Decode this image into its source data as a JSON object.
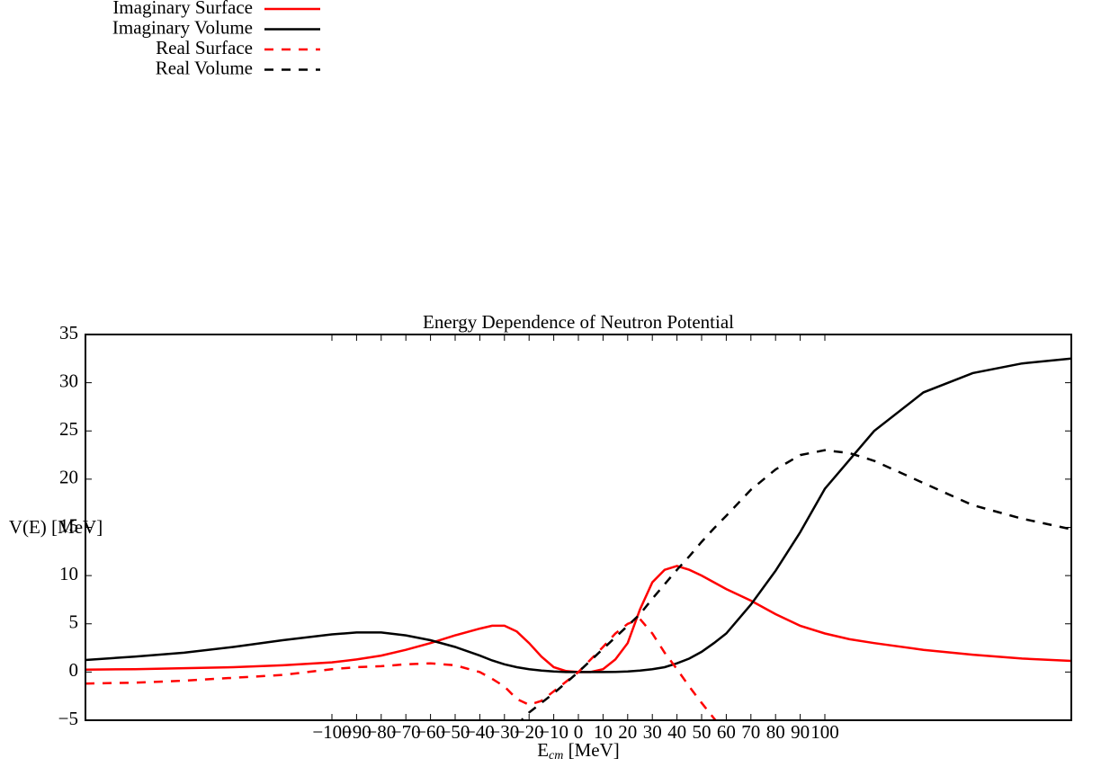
{
  "chart_data": {
    "type": "line",
    "title": "Energy Dependence of Neutron Potential",
    "xlabel": [
      "E",
      "cm",
      " [MeV]"
    ],
    "ylabel": "V(E) [MeV]",
    "x": [
      -200,
      -180,
      -160,
      -140,
      -120,
      -100,
      -90,
      -80,
      -70,
      -60,
      -50,
      -40,
      -35,
      -30,
      -25,
      -20,
      -15,
      -10,
      -5,
      0,
      5,
      10,
      15,
      20,
      25,
      30,
      35,
      40,
      45,
      50,
      55,
      60,
      70,
      80,
      90,
      100,
      110,
      120,
      140,
      160,
      180,
      200
    ],
    "series": [
      {
        "name": "Imaginary Surface",
        "color": "#ff0000",
        "dash": false,
        "values": [
          0.25,
          0.3,
          0.4,
          0.5,
          0.7,
          1.0,
          1.3,
          1.7,
          2.3,
          3.0,
          3.8,
          4.5,
          4.8,
          4.8,
          4.2,
          3.0,
          1.6,
          0.5,
          0.1,
          0,
          0,
          0.3,
          1.3,
          3.0,
          6.5,
          9.3,
          10.6,
          11.0,
          10.6,
          10.0,
          9.3,
          8.6,
          7.4,
          6.0,
          4.8,
          4.0,
          3.4,
          3.0,
          2.3,
          1.8,
          1.4,
          1.15
        ]
      },
      {
        "name": "Imaginary Volume",
        "color": "#000000",
        "dash": false,
        "values": [
          1.25,
          1.6,
          2.0,
          2.6,
          3.3,
          3.9,
          4.1,
          4.1,
          3.8,
          3.3,
          2.6,
          1.7,
          1.2,
          0.8,
          0.5,
          0.3,
          0.15,
          0.05,
          0,
          0,
          0,
          0,
          0.02,
          0.05,
          0.15,
          0.3,
          0.5,
          0.9,
          1.4,
          2.1,
          3.0,
          4.0,
          7.0,
          10.5,
          14.5,
          19.0,
          22.0,
          25.0,
          29.0,
          31.0,
          32.0,
          32.5
        ]
      },
      {
        "name": "Real Surface",
        "color": "#ff0000",
        "dash": true,
        "values": [
          -1.2,
          -1.1,
          -0.9,
          -0.6,
          -0.3,
          0.3,
          0.5,
          0.6,
          0.8,
          0.9,
          0.7,
          0.0,
          -0.7,
          -1.5,
          -2.8,
          -3.4,
          -3.0,
          -2.0,
          -1.0,
          0,
          1.3,
          2.6,
          4.0,
          5.0,
          5.5,
          4.0,
          2.0,
          0.3,
          -1.5,
          -3.2,
          -4.8,
          -6.3,
          null,
          null,
          null,
          null,
          null,
          null,
          null,
          null,
          null,
          null
        ]
      },
      {
        "name": "Real Volume",
        "color": "#000000",
        "dash": true,
        "values": [
          null,
          null,
          null,
          null,
          null,
          null,
          null,
          null,
          null,
          null,
          null,
          null,
          null,
          null,
          -5.5,
          -4.2,
          -3.2,
          -2.2,
          -1.1,
          0,
          1.2,
          2.4,
          3.6,
          4.8,
          6.0,
          7.6,
          9.1,
          10.6,
          12.0,
          13.5,
          14.9,
          16.2,
          18.9,
          21.0,
          22.5,
          23.0,
          22.7,
          21.9,
          19.6,
          17.3,
          15.9,
          14.8
        ]
      }
    ],
    "xlim": [
      -200,
      200
    ],
    "xticks": [
      {
        "value": -100,
        "label": "−100"
      },
      {
        "value": -90,
        "label": "−90"
      },
      {
        "value": -80,
        "label": "−80"
      },
      {
        "value": -70,
        "label": "−70"
      },
      {
        "value": -60,
        "label": "−60"
      },
      {
        "value": -50,
        "label": "−50"
      },
      {
        "value": -40,
        "label": "−40"
      },
      {
        "value": -30,
        "label": "−30"
      },
      {
        "value": -20,
        "label": "−20"
      },
      {
        "value": -10,
        "label": "−10"
      },
      0,
      10,
      20,
      30,
      40,
      50,
      60,
      70,
      80,
      90,
      100
    ],
    "ylim": [
      -5,
      35
    ],
    "yticks": [
      {
        "value": -5,
        "label": "−5"
      },
      0,
      5,
      10,
      15,
      20,
      25,
      30,
      35
    ],
    "grid": false,
    "legend": "upper left"
  }
}
